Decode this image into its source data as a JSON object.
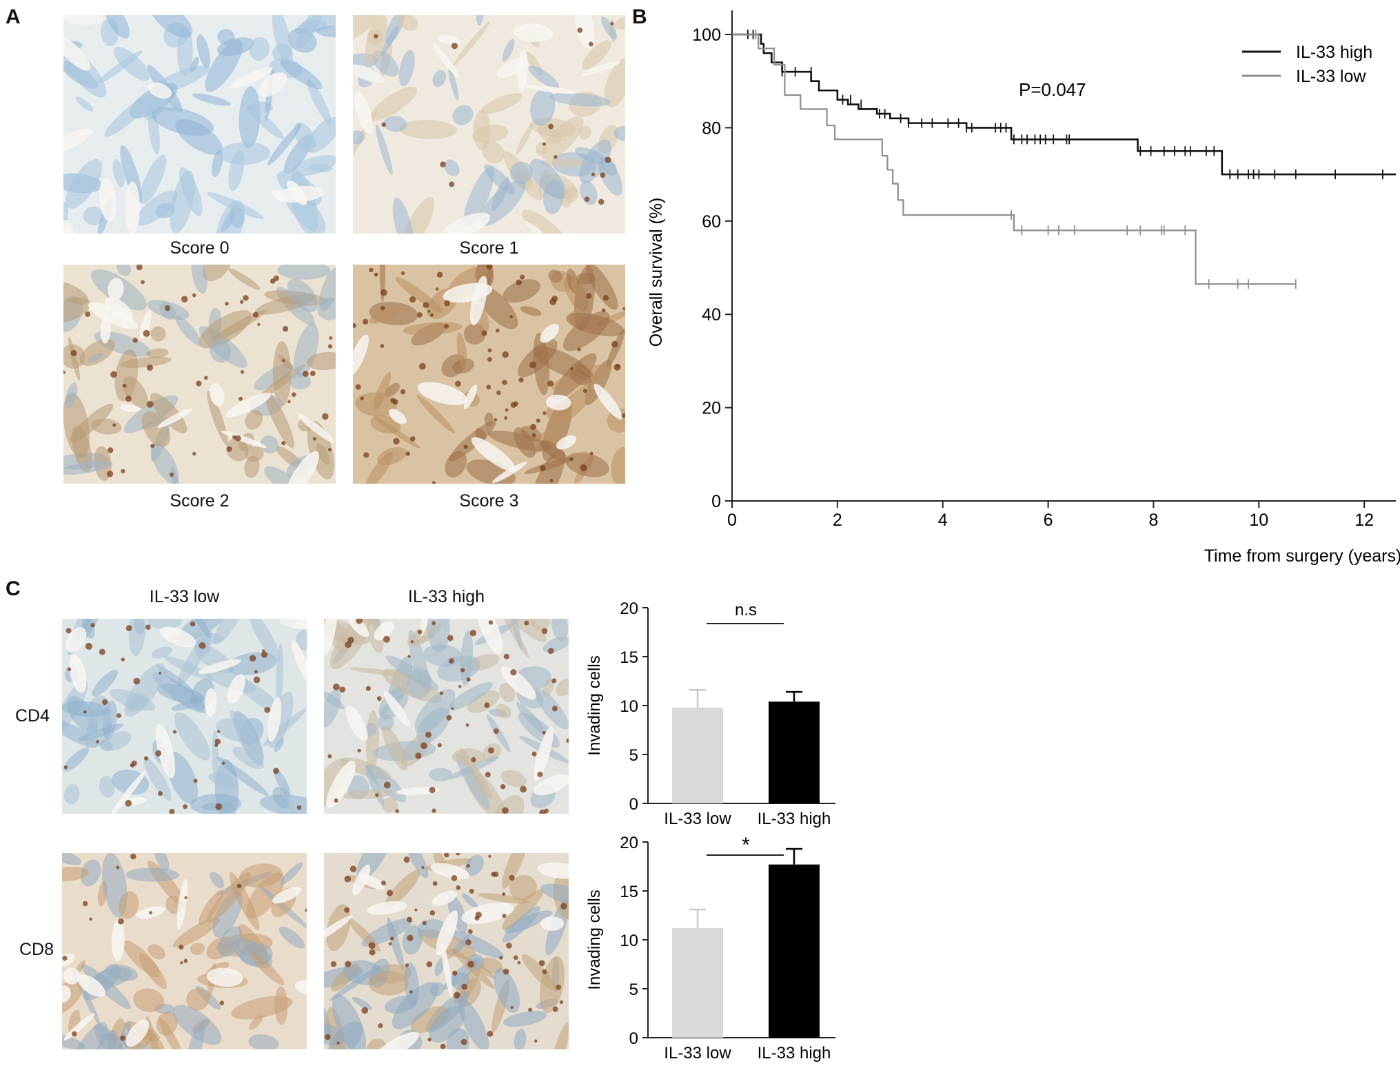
{
  "panels": {
    "a": {
      "letter": "A",
      "images": [
        {
          "caption": "Score 0",
          "tone": "blue"
        },
        {
          "caption": "Score 1",
          "tone": "light"
        },
        {
          "caption": "Score 2",
          "tone": "mixed"
        },
        {
          "caption": "Score 3",
          "tone": "brown"
        }
      ]
    },
    "b": {
      "letter": "B"
    },
    "c": {
      "letter": "C",
      "col_labels": [
        "IL-33 low",
        "IL-33 high"
      ],
      "row_labels": [
        "CD4",
        "CD8"
      ]
    }
  },
  "colors": {
    "blue_stain": "#8fb4d6",
    "brown_stain": "#a0703e",
    "high_line": "#111111",
    "low_line": "#8e8e8e",
    "bar_low": "#d9d9d9",
    "bar_high": "#000000"
  },
  "chart_data": [
    {
      "type": "line",
      "chart_kind": "kaplan-meier",
      "xlabel": "Time from surgery (years)",
      "ylabel": "Overall survival (%)",
      "xlim": [
        0,
        12.6
      ],
      "ylim": [
        0,
        100
      ],
      "xticks": [
        0,
        2,
        4,
        6,
        8,
        10,
        12
      ],
      "yticks": [
        0,
        20,
        40,
        60,
        80,
        100
      ],
      "annotation": "P=0.047",
      "legend_position": "top-right",
      "series": [
        {
          "name": "IL-33 high",
          "color": "#111111",
          "steps": [
            [
              0,
              100
            ],
            [
              0.55,
              98
            ],
            [
              0.6,
              96
            ],
            [
              0.75,
              94
            ],
            [
              0.95,
              92
            ],
            [
              1.5,
              90
            ],
            [
              1.65,
              88
            ],
            [
              2.0,
              86
            ],
            [
              2.2,
              85
            ],
            [
              2.4,
              84
            ],
            [
              2.75,
              83
            ],
            [
              3.0,
              82
            ],
            [
              3.35,
              81
            ],
            [
              4.45,
              80
            ],
            [
              5.3,
              77.5
            ],
            [
              7.7,
              75
            ],
            [
              9.3,
              70
            ]
          ],
          "end": 12.6,
          "censored": [
            [
              0.3,
              100
            ],
            [
              0.4,
              100
            ],
            [
              0.95,
              92
            ],
            [
              1.2,
              92
            ],
            [
              1.5,
              92
            ],
            [
              2.1,
              86
            ],
            [
              2.25,
              86
            ],
            [
              2.45,
              85
            ],
            [
              2.8,
              83
            ],
            [
              2.9,
              83
            ],
            [
              3.2,
              82
            ],
            [
              3.35,
              81
            ],
            [
              3.6,
              81
            ],
            [
              3.8,
              81
            ],
            [
              4.1,
              81
            ],
            [
              4.3,
              81
            ],
            [
              4.45,
              80
            ],
            [
              4.55,
              80
            ],
            [
              5.0,
              80
            ],
            [
              5.1,
              80
            ],
            [
              5.2,
              80
            ],
            [
              5.35,
              77.5
            ],
            [
              5.5,
              77.5
            ],
            [
              5.6,
              77.5
            ],
            [
              5.75,
              77.5
            ],
            [
              5.85,
              77.5
            ],
            [
              5.95,
              77.5
            ],
            [
              6.1,
              77.5
            ],
            [
              6.35,
              77.5
            ],
            [
              6.4,
              77.5
            ],
            [
              7.75,
              75
            ],
            [
              7.95,
              75
            ],
            [
              8.2,
              75
            ],
            [
              8.4,
              75
            ],
            [
              8.6,
              75
            ],
            [
              8.7,
              75
            ],
            [
              9.0,
              75
            ],
            [
              9.15,
              75
            ],
            [
              9.45,
              70
            ],
            [
              9.6,
              70
            ],
            [
              9.8,
              70
            ],
            [
              9.9,
              70
            ],
            [
              10.0,
              70
            ],
            [
              10.3,
              70
            ],
            [
              10.7,
              70
            ],
            [
              11.45,
              70
            ],
            [
              12.35,
              70
            ]
          ]
        },
        {
          "name": "IL-33 low",
          "color": "#8e8e8e",
          "steps": [
            [
              0,
              100
            ],
            [
              0.5,
              97
            ],
            [
              0.8,
              93.5
            ],
            [
              1.0,
              87
            ],
            [
              1.3,
              84
            ],
            [
              1.8,
              80.5
            ],
            [
              1.95,
              77.5
            ],
            [
              2.85,
              74
            ],
            [
              2.95,
              71
            ],
            [
              3.05,
              68
            ],
            [
              3.15,
              64.5
            ],
            [
              3.25,
              61.3
            ],
            [
              5.35,
              58
            ],
            [
              8.8,
              46.5
            ]
          ],
          "end": 10.7,
          "censored": [
            [
              0.45,
              100
            ],
            [
              5.3,
              61.3
            ],
            [
              5.5,
              58
            ],
            [
              6.0,
              58
            ],
            [
              6.2,
              58
            ],
            [
              6.5,
              58
            ],
            [
              7.5,
              58
            ],
            [
              7.75,
              58
            ],
            [
              8.15,
              58
            ],
            [
              8.2,
              58
            ],
            [
              8.6,
              58
            ],
            [
              9.05,
              46.5
            ],
            [
              9.6,
              46.5
            ],
            [
              9.8,
              46.5
            ],
            [
              10.7,
              46.5
            ]
          ]
        }
      ]
    },
    {
      "type": "bar",
      "ylabel": "Invading cells",
      "ylim": [
        0,
        20
      ],
      "yticks": [
        0,
        5,
        10,
        15,
        20
      ],
      "categories": [
        "IL-33 low",
        "IL-33 high"
      ],
      "values": [
        9.8,
        10.4
      ],
      "errors": [
        1.8,
        1.0
      ],
      "significance": "n.s"
    },
    {
      "type": "bar",
      "ylabel": "Invading cells",
      "ylim": [
        0,
        20
      ],
      "yticks": [
        0,
        5,
        10,
        15,
        20
      ],
      "categories": [
        "IL-33 low",
        "IL-33 high"
      ],
      "values": [
        11.2,
        17.7
      ],
      "errors": [
        1.9,
        1.6
      ],
      "significance": "*"
    }
  ]
}
